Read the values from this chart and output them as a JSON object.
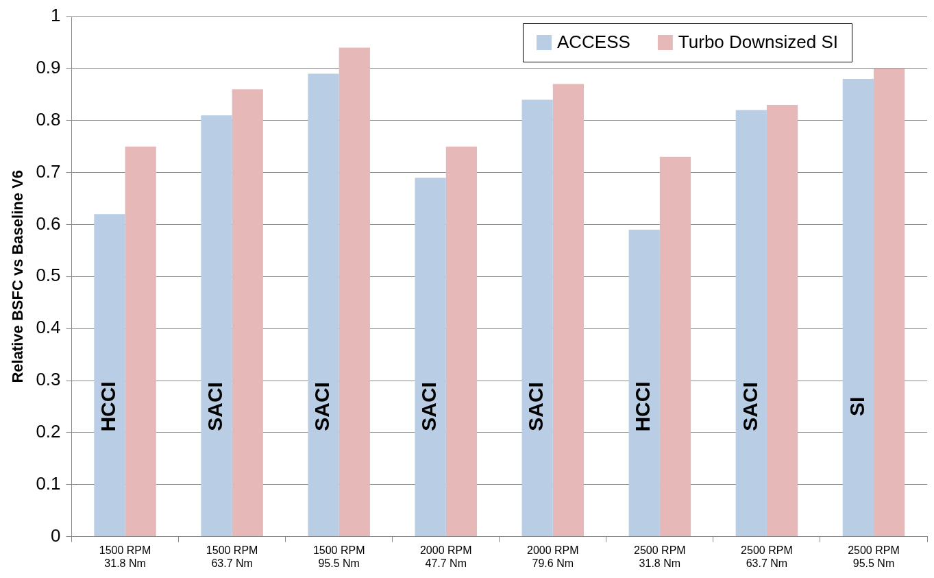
{
  "chart_data": {
    "type": "bar",
    "ylabel": "Relative BSFC vs Baseline V6",
    "categories": [
      "1500 RPM\n31.8 Nm",
      "1500 RPM\n63.7 Nm",
      "1500 RPM\n95.5 Nm",
      "2000 RPM\n47.7 Nm",
      "2000 RPM\n79.6 Nm",
      "2500 RPM\n31.8 Nm",
      "2500 RPM\n63.7 Nm",
      "2500 RPM\n95.5 Nm"
    ],
    "series": [
      {
        "name": "ACCESS",
        "color": "#b9cde5",
        "values": [
          0.62,
          0.81,
          0.89,
          0.69,
          0.84,
          0.59,
          0.82,
          0.88
        ]
      },
      {
        "name": "Turbo Downsized SI",
        "color": "#e6b9b8",
        "values": [
          0.75,
          0.86,
          0.94,
          0.75,
          0.87,
          0.73,
          0.83,
          0.9
        ]
      }
    ],
    "annotations": [
      {
        "text": "HCCI",
        "x": "1500 RPM\n31.8 Nm",
        "y": 0.25
      },
      {
        "text": "SACI",
        "x": "1500 RPM\n63.7 Nm",
        "y": 0.25
      },
      {
        "text": "SACI",
        "x": "1500 RPM\n95.5 Nm",
        "y": 0.25
      },
      {
        "text": "SACI",
        "x": "2000 RPM\n47.7 Nm",
        "y": 0.25
      },
      {
        "text": "SACI",
        "x": "2000 RPM\n79.6 Nm",
        "y": 0.25
      },
      {
        "text": "HCCI",
        "x": "2500 RPM\n31.8 Nm",
        "y": 0.25
      },
      {
        "text": "SACI",
        "x": "2500 RPM\n63.7 Nm",
        "y": 0.25
      },
      {
        "text": "SI",
        "x": "2500 RPM\n95.5 Nm",
        "y": 0.25
      }
    ],
    "ylim": [
      0,
      1
    ],
    "yticks": [
      0,
      0.1,
      0.2,
      0.3,
      0.4,
      0.5,
      0.6,
      0.7,
      0.8,
      0.9,
      1
    ],
    "grid": "y",
    "legend": "top right"
  }
}
